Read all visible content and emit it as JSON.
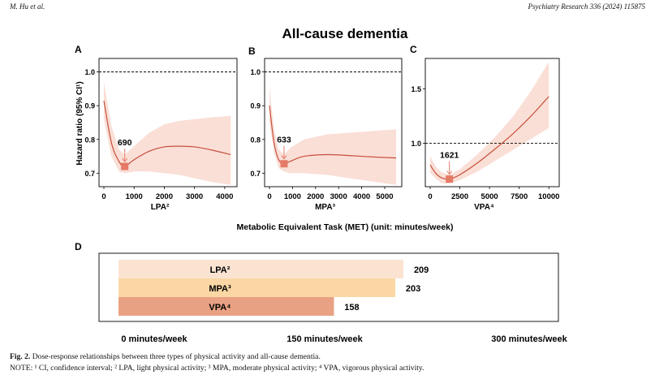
{
  "header": {
    "left": "M. Hu et al.",
    "right": "Psychiatry Research 336 (2024) 115875"
  },
  "figure": {
    "title": "All-cause dementia",
    "ylabel": "Hazard ratio (95% CI¹)",
    "shared_xlabel": "Metabolic Equivalent Task (MET) (unit: minutes/week)"
  },
  "chart_data": [
    {
      "panel": "A",
      "type": "line",
      "xlabel": "LPA²",
      "xlim": [
        0,
        4300
      ],
      "ylim": [
        0.66,
        1.04
      ],
      "xticks": [
        0,
        1000,
        2000,
        3000,
        4000
      ],
      "xtick_labels": [
        "0",
        "1000",
        "2000",
        "3000",
        "4000"
      ],
      "yticks": [
        0.7,
        0.8,
        0.9,
        1.0
      ],
      "ytick_labels": [
        "0.7",
        "0.8",
        "0.9",
        "1.0"
      ],
      "reference_line": 1.0,
      "x": [
        0,
        250,
        500,
        690,
        1000,
        1500,
        2000,
        2500,
        3000,
        3500,
        4200
      ],
      "y": [
        0.915,
        0.79,
        0.735,
        0.72,
        0.74,
        0.765,
        0.778,
        0.78,
        0.778,
        0.77,
        0.755
      ],
      "lower": [
        0.86,
        0.75,
        0.705,
        0.7,
        0.705,
        0.705,
        0.7,
        0.695,
        0.685,
        0.675,
        0.665
      ],
      "upper": [
        0.97,
        0.84,
        0.77,
        0.755,
        0.78,
        0.82,
        0.845,
        0.855,
        0.86,
        0.865,
        0.87
      ],
      "optimum": {
        "x": 690,
        "y": 0.72,
        "label": "690"
      }
    },
    {
      "panel": "B",
      "type": "line",
      "xlabel": "MPA³",
      "xlim": [
        0,
        5600
      ],
      "ylim": [
        0.66,
        1.04
      ],
      "xticks": [
        0,
        1000,
        2000,
        3000,
        4000,
        5000
      ],
      "xtick_labels": [
        "0",
        "1000",
        "2000",
        "3000",
        "4000",
        "5000"
      ],
      "yticks": [
        0.7,
        0.8,
        0.9,
        1.0
      ],
      "ytick_labels": [
        "0.7",
        "0.8",
        "0.9",
        "1.0"
      ],
      "reference_line": 1.0,
      "x": [
        0,
        200,
        400,
        633,
        900,
        1500,
        2500,
        3500,
        4500,
        5500
      ],
      "y": [
        0.9,
        0.79,
        0.74,
        0.728,
        0.735,
        0.75,
        0.755,
        0.752,
        0.748,
        0.745
      ],
      "lower": [
        0.85,
        0.76,
        0.715,
        0.705,
        0.7,
        0.7,
        0.695,
        0.685,
        0.675,
        0.665
      ],
      "upper": [
        0.955,
        0.83,
        0.77,
        0.755,
        0.775,
        0.8,
        0.815,
        0.82,
        0.825,
        0.83
      ],
      "optimum": {
        "x": 633,
        "y": 0.728,
        "label": "633"
      }
    },
    {
      "panel": "C",
      "type": "line",
      "xlabel": "VPA⁴",
      "xlim": [
        0,
        10600
      ],
      "ylim": [
        0.6,
        1.78
      ],
      "xticks": [
        0,
        2500,
        5000,
        7500,
        10000
      ],
      "xtick_labels": [
        "0",
        "2500",
        "5000",
        "7500",
        "10000"
      ],
      "yticks": [
        1.0,
        1.5
      ],
      "ytick_labels": [
        "1.0",
        "1.5"
      ],
      "reference_line": 1.0,
      "x": [
        0,
        500,
        1000,
        1621,
        2500,
        4000,
        5500,
        7000,
        8500,
        10000
      ],
      "y": [
        0.8,
        0.72,
        0.68,
        0.67,
        0.71,
        0.82,
        0.95,
        1.09,
        1.25,
        1.43
      ],
      "lower": [
        0.73,
        0.67,
        0.63,
        0.63,
        0.66,
        0.74,
        0.84,
        0.94,
        1.04,
        1.14
      ],
      "upper": [
        0.88,
        0.78,
        0.73,
        0.71,
        0.76,
        0.9,
        1.06,
        1.25,
        1.48,
        1.75
      ],
      "optimum": {
        "x": 1621,
        "y": 0.67,
        "label": "1621"
      }
    },
    {
      "panel": "D",
      "type": "bar",
      "orientation": "horizontal",
      "categories": [
        "LPA²",
        "MPA³",
        "VPA⁴"
      ],
      "values": [
        209,
        203,
        158
      ],
      "colors": [
        "#fbe3d2",
        "#fad7a4",
        "#e9a183"
      ],
      "xlim": [
        0,
        300
      ],
      "xticks": [
        0,
        150,
        300
      ],
      "xtick_labels": [
        "0 minutes/week",
        "150 minutes/week",
        "300 minutes/week"
      ]
    }
  ],
  "caption": {
    "fig_label": "Fig. 2.",
    "line1": " Dose-response relationships between three types of physical activity and all-cause dementia.",
    "line2": "NOTE: ¹ CI, confidence interval; ² LPA, light physical activity; ³ MPA, moderate physical activity; ⁴ VPA, vigorous physical activity."
  },
  "colors": {
    "line": "#c8503c",
    "band": "#f9dcd3",
    "marker": "#e57a66",
    "arrow": "#e57a66"
  }
}
